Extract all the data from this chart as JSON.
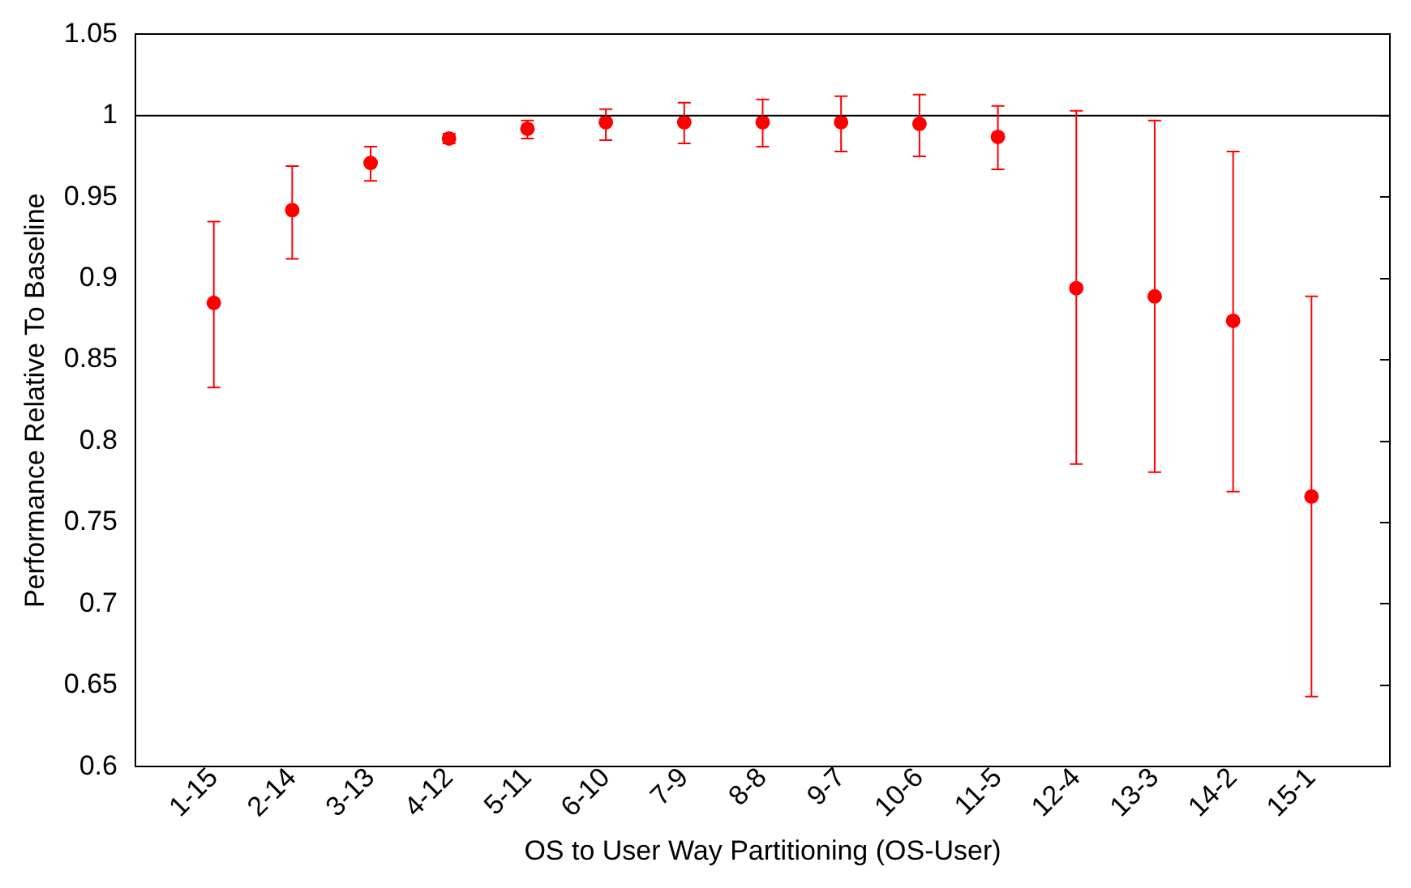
{
  "chart_data": {
    "type": "scatter",
    "xlabel": "OS to User Way Partitioning (OS-User)",
    "ylabel": "Performance Relative To Baseline",
    "categories": [
      "1-15",
      "2-14",
      "3-13",
      "4-12",
      "5-11",
      "6-10",
      "7-9",
      "8-8",
      "9-7",
      "10-6",
      "11-5",
      "12-4",
      "13-3",
      "14-2",
      "15-1"
    ],
    "series": [
      {
        "color": "#ff0000",
        "values": [
          0.885,
          0.942,
          0.971,
          0.986,
          0.992,
          0.996,
          0.996,
          0.996,
          0.996,
          0.995,
          0.987,
          0.894,
          0.889,
          0.874,
          0.766
        ],
        "errors": [
          [
            0.833,
            0.935
          ],
          [
            0.912,
            0.969
          ],
          [
            0.96,
            0.981
          ],
          [
            0.983,
            0.989
          ],
          [
            0.986,
            0.997
          ],
          [
            0.985,
            1.004
          ],
          [
            0.983,
            1.008
          ],
          [
            0.981,
            1.01
          ],
          [
            0.978,
            1.012
          ],
          [
            0.975,
            1.013
          ],
          [
            0.967,
            1.006
          ],
          [
            0.786,
            1.003
          ],
          [
            0.781,
            0.997
          ],
          [
            0.769,
            0.978
          ],
          [
            0.643,
            0.889
          ]
        ]
      }
    ],
    "ylim": [
      0.6,
      1.05
    ],
    "yticks": [
      0.6,
      0.65,
      0.7,
      0.75,
      0.8,
      0.85,
      0.9,
      0.95,
      1,
      1.05
    ],
    "ref_lines": [
      {
        "axis": "y",
        "value": 1,
        "color": "#000000"
      }
    ],
    "grid": false,
    "legend": false,
    "marker": "circle"
  }
}
